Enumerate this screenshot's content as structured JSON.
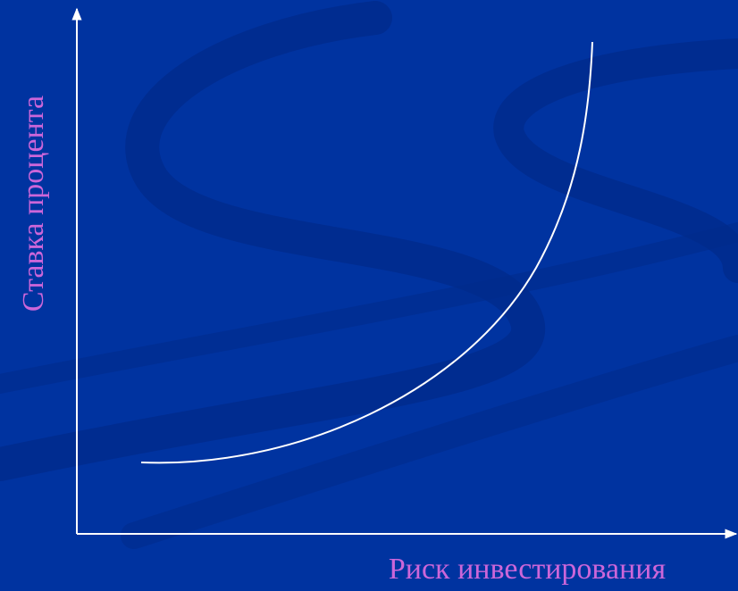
{
  "axes": {
    "x_label": "Риск инвестирования",
    "y_label": "Ставка процента"
  }
}
